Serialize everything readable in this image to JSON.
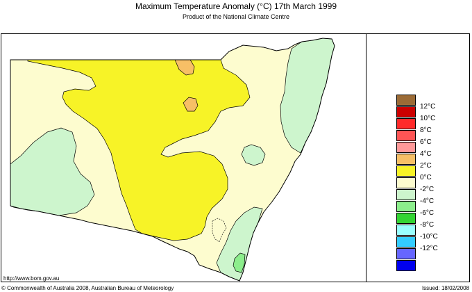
{
  "header": {
    "title": "Maximum Temperature Anomaly (°C)  17th March 1999",
    "subtitle": "Product of the National Climate Centre"
  },
  "legend": {
    "items": [
      {
        "label": "",
        "color": "#9b6b36"
      },
      {
        "label": "12°C",
        "color": "#cc0000"
      },
      {
        "label": "10°C",
        "color": "#ff2a2a"
      },
      {
        "label": "8°C",
        "color": "#ff5555"
      },
      {
        "label": "6°C",
        "color": "#ff9999"
      },
      {
        "label": "4°C",
        "color": "#f7bf66"
      },
      {
        "label": "2°C",
        "color": "#f7f327"
      },
      {
        "label": "0°C",
        "color": "#fdfccf"
      },
      {
        "label": "-2°C",
        "color": "#cdf5cd"
      },
      {
        "label": "-4°C",
        "color": "#8cee8c"
      },
      {
        "label": "-6°C",
        "color": "#33d433"
      },
      {
        "label": "-8°C",
        "color": "#99ffff"
      },
      {
        "label": "-10°C",
        "color": "#33ccff"
      },
      {
        "label": "-12°C",
        "color": "#6666ff"
      },
      {
        "label": "",
        "color": "#0000ee"
      }
    ]
  },
  "map_colors": {
    "cream": "#fdfccf",
    "yellow": "#f7f327",
    "orange": "#f7bf66",
    "light_green": "#cdf5cd",
    "green": "#8cee8c"
  },
  "footer": {
    "url": "http://www.bom.gov.au",
    "copyright": "© Commonwealth of Australia 2008, Australian Bureau of Meteorology",
    "issued": "Issued: 18/02/2008"
  }
}
